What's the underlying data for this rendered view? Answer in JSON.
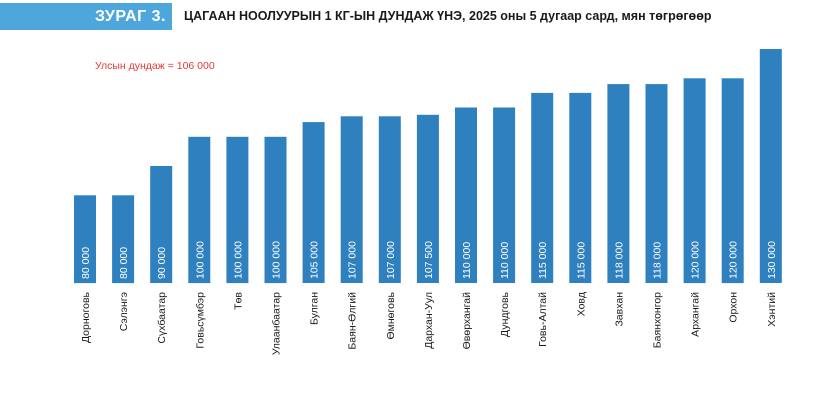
{
  "figure": {
    "label": "ЗУРАГ 3.",
    "title": "ЦАГААН НООЛУУРЫН 1 КГ-ЫН ДУНДАЖ ҮНЭ, 2025 оны 5 дугаар сард, мян төгрөгөөр"
  },
  "colors": {
    "bar": "#2e80bf",
    "badge": "#4da6dc",
    "note": "#e53935"
  },
  "chart_data": {
    "type": "bar",
    "title": "",
    "xlabel": "",
    "ylabel": "",
    "ylim": [
      50000,
      130000
    ],
    "annotation": "Улсын дундаж = 106 000",
    "categories": [
      "Дорноговь",
      "Сэлэнгэ",
      "Сүхбаатар",
      "Говьсүмбэр",
      "Төв",
      "Улаанбаатар",
      "Булган",
      "Баян-Өлгий",
      "Өмнөговь",
      "Дархан-Уул",
      "Өвөрхангай",
      "Дундговь",
      "Говь-Алтай",
      "Ховд",
      "Завхан",
      "Баянхонгор",
      "Архангай",
      "Орхон",
      "Хэнтий"
    ],
    "values": [
      80000,
      80000,
      90000,
      100000,
      100000,
      100000,
      105000,
      107000,
      107000,
      107500,
      110000,
      110000,
      115000,
      115000,
      118000,
      118000,
      120000,
      120000,
      130000
    ],
    "value_labels": [
      "80 000",
      "80 000",
      "90 000",
      "100 000",
      "100 000",
      "100 000",
      "105 000",
      "107 000",
      "107 000",
      "107 500",
      "110 000",
      "110 000",
      "115 000",
      "115 000",
      "118 000",
      "118 000",
      "120 000",
      "120 000",
      "130 000"
    ]
  }
}
